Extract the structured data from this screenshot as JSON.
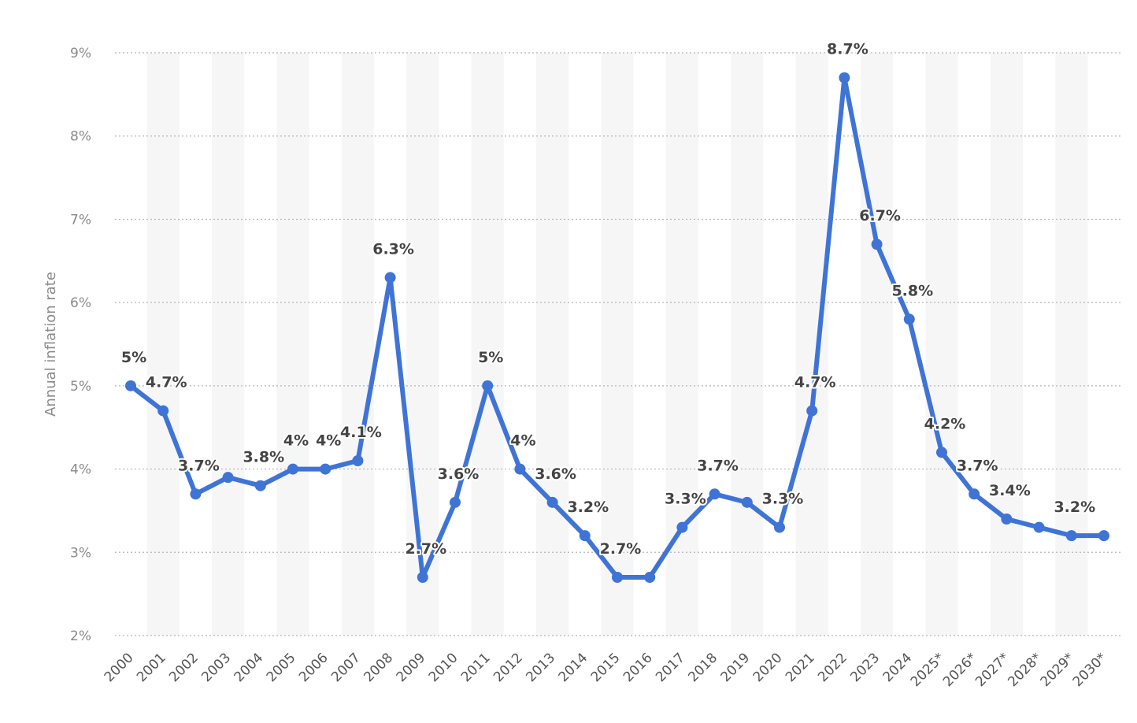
{
  "chart_data": {
    "type": "line",
    "ylabel": "Annual inflation rate",
    "xlabel": "",
    "title": "",
    "ylim": [
      2,
      9
    ],
    "y_ticks": [
      "2%",
      "3%",
      "4%",
      "5%",
      "6%",
      "7%",
      "8%",
      "9%"
    ],
    "y_tick_values": [
      2,
      3,
      4,
      5,
      6,
      7,
      8,
      9
    ],
    "grid": true,
    "categories": [
      "2000",
      "2001",
      "2002",
      "2003",
      "2004",
      "2005",
      "2006",
      "2007",
      "2008",
      "2009",
      "2010",
      "2011",
      "2012",
      "2013",
      "2014",
      "2015",
      "2016",
      "2017",
      "2018",
      "2019",
      "2020",
      "2021",
      "2022",
      "2023",
      "2024",
      "2025*",
      "2026*",
      "2027*",
      "2028*",
      "2029*",
      "2030*"
    ],
    "series": [
      {
        "values": [
          5.0,
          4.7,
          3.7,
          3.9,
          3.8,
          4.0,
          4.0,
          4.1,
          6.3,
          2.7,
          3.6,
          5.0,
          4.0,
          3.6,
          3.2,
          2.7,
          2.7,
          3.3,
          3.7,
          3.6,
          3.3,
          4.7,
          8.7,
          6.7,
          5.8,
          4.2,
          3.7,
          3.4,
          3.3,
          3.2,
          3.2
        ],
        "labels": [
          "5%",
          "4.7%",
          "3.7%",
          "",
          "3.8%",
          "4%",
          "4%",
          "4.1%",
          "6.3%",
          "2.7%",
          "3.6%",
          "5%",
          "4%",
          "3.6%",
          "3.2%",
          "2.7%",
          "",
          "3.3%",
          "3.7%",
          "",
          "3.3%",
          "4.7%",
          "8.7%",
          "6.7%",
          "5.8%",
          "4.2%",
          "3.7%",
          "3.4%",
          "",
          "3.2%",
          ""
        ]
      }
    ],
    "colors": {
      "series": "#3f74d6",
      "band": "#f6f6f6",
      "grid": "#b4b4b4",
      "axis_text": "#8a8a8a",
      "label_text": "#444444"
    }
  }
}
